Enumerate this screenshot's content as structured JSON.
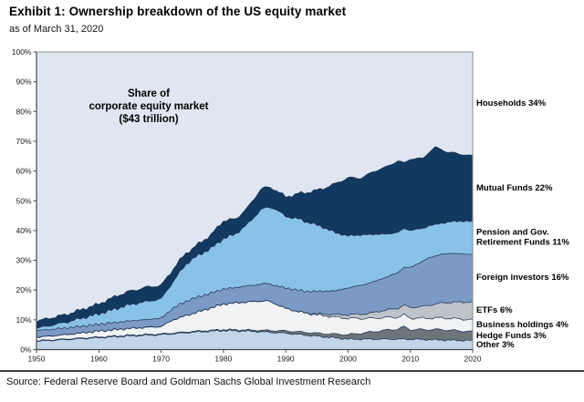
{
  "header": {
    "title": "Exhibit 1: Ownership breakdown of the US equity market",
    "subtitle": "as of March 31, 2020"
  },
  "footer": {
    "source": "Source: Federal Reserve Board and Goldman Sachs Global Investment Research"
  },
  "chart_data": {
    "type": "area",
    "stacked": true,
    "annotation": "Share of\ncorporate equity market\n($43 trillion)",
    "x_range": [
      1950,
      2020
    ],
    "y_range": [
      0,
      100
    ],
    "grid": false,
    "legend_position": "right",
    "colors": {
      "plot_background_households": "#e0e6f1",
      "boundary_stroke": "#1d3050",
      "axis": "#4a4a4a",
      "frame": "#8a8a8a"
    },
    "y_ticks": [
      {
        "v": 0,
        "label": "0%"
      },
      {
        "v": 10,
        "label": "10%"
      },
      {
        "v": 20,
        "label": "20%"
      },
      {
        "v": 30,
        "label": "30%"
      },
      {
        "v": 40,
        "label": "40%"
      },
      {
        "v": 50,
        "label": "50%"
      },
      {
        "v": 60,
        "label": "60%"
      },
      {
        "v": 70,
        "label": "70%"
      },
      {
        "v": 80,
        "label": "80%"
      },
      {
        "v": 90,
        "label": "90%"
      },
      {
        "v": 100,
        "label": "100%"
      }
    ],
    "x_ticks": [
      {
        "v": 1950,
        "label": "1950"
      },
      {
        "v": 1960,
        "label": "1960"
      },
      {
        "v": 1970,
        "label": "1970"
      },
      {
        "v": 1980,
        "label": "1980"
      },
      {
        "v": 1990,
        "label": "1990"
      },
      {
        "v": 2000,
        "label": "2000"
      },
      {
        "v": 2010,
        "label": "2010"
      },
      {
        "v": 2020,
        "label": "2020"
      }
    ],
    "households": {
      "key": "households",
      "label": "Households 34%",
      "share_2020": 34,
      "color": "#e0e6f1"
    },
    "series": [
      {
        "key": "other",
        "label": "Other 3%",
        "share_2020": 3,
        "color": "#c2d6ea",
        "points": [
          [
            1950,
            2.8
          ],
          [
            1955,
            3.4
          ],
          [
            1960,
            4
          ],
          [
            1965,
            4.6
          ],
          [
            1970,
            5
          ],
          [
            1975,
            5.8
          ],
          [
            1980,
            6.4
          ],
          [
            1985,
            6.1
          ],
          [
            1990,
            5.5
          ],
          [
            1995,
            4.5
          ],
          [
            2000,
            3.5
          ],
          [
            2010,
            3.5
          ],
          [
            2015,
            3.2
          ],
          [
            2020,
            3
          ]
        ]
      },
      {
        "key": "hedge",
        "label": "Hedge Funds 3%",
        "share_2020": 3,
        "color": "#6d747a",
        "points": [
          [
            1950,
            0.15
          ],
          [
            1980,
            0.3
          ],
          [
            1985,
            0.4
          ],
          [
            1990,
            0.8
          ],
          [
            1995,
            1
          ],
          [
            2000,
            1.5
          ],
          [
            2003,
            2.2
          ],
          [
            2005,
            2.8
          ],
          [
            2008,
            3.4
          ],
          [
            2009,
            4.2
          ],
          [
            2010,
            3.2
          ],
          [
            2013,
            3.4
          ],
          [
            2015,
            3.5
          ],
          [
            2018,
            3.2
          ],
          [
            2020,
            3
          ]
        ]
      },
      {
        "key": "business",
        "label": "Business holdings 4%",
        "share_2020": 4,
        "color": "#f0f2f3",
        "points": [
          [
            1950,
            1.2
          ],
          [
            1955,
            1.5
          ],
          [
            1960,
            2
          ],
          [
            1965,
            2.3
          ],
          [
            1970,
            2.5
          ],
          [
            1972,
            4.5
          ],
          [
            1974,
            5.5
          ],
          [
            1976,
            6.5
          ],
          [
            1980,
            8.6
          ],
          [
            1984,
            9.5
          ],
          [
            1987,
            10
          ],
          [
            1989,
            8.5
          ],
          [
            1990,
            7.5
          ],
          [
            1993,
            6.5
          ],
          [
            1996,
            6
          ],
          [
            2000,
            5.5
          ],
          [
            2004,
            4.5
          ],
          [
            2008,
            4
          ],
          [
            2012,
            3.8
          ],
          [
            2016,
            4
          ],
          [
            2020,
            4
          ]
        ]
      },
      {
        "key": "etf",
        "label": "ETFs 6%",
        "share_2020": 6,
        "color": "#bdc3c9",
        "points": [
          [
            1950,
            0
          ],
          [
            1993,
            0
          ],
          [
            1995,
            0.4
          ],
          [
            1998,
            0.8
          ],
          [
            2000,
            1.2
          ],
          [
            2003,
            1.6
          ],
          [
            2005,
            2.2
          ],
          [
            2008,
            3
          ],
          [
            2010,
            3.5
          ],
          [
            2012,
            4
          ],
          [
            2015,
            5
          ],
          [
            2017,
            5.5
          ],
          [
            2020,
            6
          ]
        ]
      },
      {
        "key": "foreign",
        "label": "Foreign investors 16%",
        "share_2020": 16,
        "color": "#7b9ac5",
        "points": [
          [
            1950,
            2.2
          ],
          [
            1960,
            2.3
          ],
          [
            1965,
            2.5
          ],
          [
            1970,
            2.8
          ],
          [
            1973,
            4.5
          ],
          [
            1975,
            5
          ],
          [
            1980,
            5
          ],
          [
            1985,
            5.5
          ],
          [
            1988,
            6
          ],
          [
            1990,
            6.9
          ],
          [
            1995,
            7.5
          ],
          [
            1998,
            8
          ],
          [
            2000,
            9
          ],
          [
            2003,
            10
          ],
          [
            2006,
            11
          ],
          [
            2008,
            12
          ],
          [
            2010,
            13.5
          ],
          [
            2013,
            16
          ],
          [
            2016,
            16.5
          ],
          [
            2020,
            16
          ]
        ]
      },
      {
        "key": "pension",
        "label": "Pension and Gov.\nRetirement Funds 11%",
        "share_2020": 11,
        "color": "#89c2e8",
        "points": [
          [
            1950,
            0.8
          ],
          [
            1955,
            2
          ],
          [
            1960,
            3.5
          ],
          [
            1965,
            5.5
          ],
          [
            1970,
            6.5
          ],
          [
            1972,
            9
          ],
          [
            1974,
            12.5
          ],
          [
            1976,
            14
          ],
          [
            1978,
            15
          ],
          [
            1980,
            17
          ],
          [
            1982,
            18
          ],
          [
            1984,
            21
          ],
          [
            1986,
            25
          ],
          [
            1988,
            26
          ],
          [
            1990,
            24
          ],
          [
            1992,
            24
          ],
          [
            1994,
            23
          ],
          [
            1996,
            21.5
          ],
          [
            1998,
            19.5
          ],
          [
            2000,
            17.5
          ],
          [
            2002,
            17
          ],
          [
            2004,
            16
          ],
          [
            2006,
            14.5
          ],
          [
            2008,
            13.5
          ],
          [
            2010,
            12.5
          ],
          [
            2012,
            11
          ],
          [
            2014,
            10.5
          ],
          [
            2016,
            10.5
          ],
          [
            2018,
            11
          ],
          [
            2020,
            11
          ]
        ]
      },
      {
        "key": "mutual",
        "label": "Mutual Funds 22%",
        "share_2020": 22,
        "color": "#12395f",
        "points": [
          [
            1950,
            2.4
          ],
          [
            1955,
            2.6
          ],
          [
            1960,
            3.3
          ],
          [
            1963,
            4.3
          ],
          [
            1965,
            4.5
          ],
          [
            1968,
            4.8
          ],
          [
            1970,
            4.5
          ],
          [
            1973,
            4
          ],
          [
            1975,
            3.5
          ],
          [
            1978,
            4.5
          ],
          [
            1980,
            6
          ],
          [
            1982,
            5
          ],
          [
            1984,
            5.5
          ],
          [
            1986,
            7
          ],
          [
            1988,
            6.5
          ],
          [
            1990,
            6.5
          ],
          [
            1992,
            8.5
          ],
          [
            1994,
            10.5
          ],
          [
            1996,
            13
          ],
          [
            1998,
            16.5
          ],
          [
            2000,
            19.5
          ],
          [
            2002,
            19
          ],
          [
            2004,
            21
          ],
          [
            2006,
            22.5
          ],
          [
            2008,
            24
          ],
          [
            2009,
            22
          ],
          [
            2010,
            24
          ],
          [
            2012,
            23.5
          ],
          [
            2014,
            26
          ],
          [
            2016,
            23.5
          ],
          [
            2018,
            22.5
          ],
          [
            2020,
            22
          ]
        ]
      }
    ],
    "legend": [
      {
        "for": "households",
        "text": "Households 34%"
      },
      {
        "for": "mutual",
        "text": "Mutual Funds 22%"
      },
      {
        "for": "pension",
        "text": "Pension and Gov.\nRetirement Funds 11%"
      },
      {
        "for": "foreign",
        "text": "Foreign investors 16%"
      },
      {
        "for": "etf",
        "text": "ETFs 6%"
      },
      {
        "for": "business",
        "text": "Business holdings 4%"
      },
      {
        "for": "hedge",
        "text": "Hedge Funds 3%"
      },
      {
        "for": "other",
        "text": "Other 3%"
      }
    ]
  }
}
